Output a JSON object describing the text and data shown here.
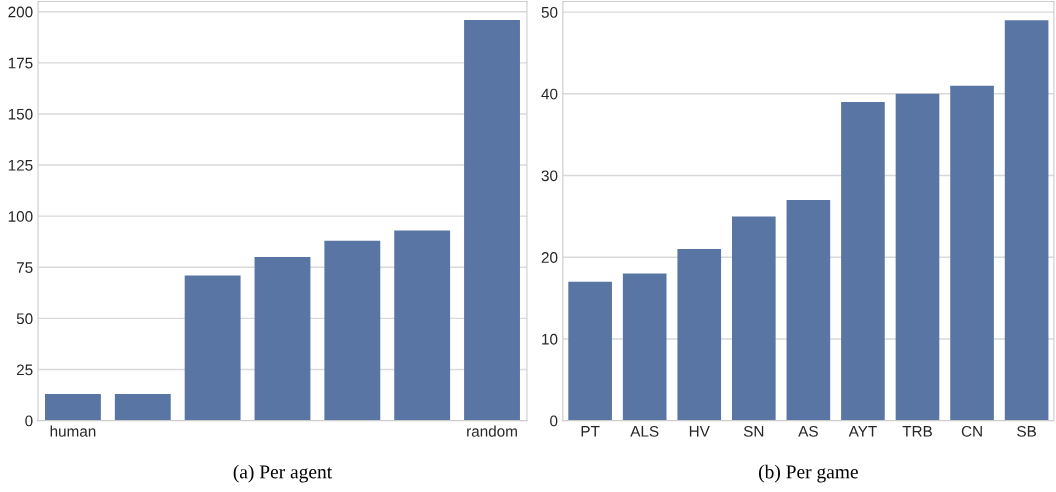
{
  "chart_data": [
    {
      "type": "bar",
      "xlabel": "(a) Per agent",
      "categories": [
        "human",
        null,
        null,
        null,
        null,
        null,
        "random"
      ],
      "values": [
        13,
        13,
        71,
        80,
        88,
        93,
        196
      ],
      "color": "#5975a4",
      "ylim": [
        0,
        205
      ],
      "yticks": [
        0,
        25,
        50,
        75,
        100,
        125,
        150,
        175,
        200
      ],
      "grid": "y"
    },
    {
      "type": "bar",
      "xlabel": "(b) Per game",
      "categories": [
        "PT",
        "ALS",
        "HV",
        "SN",
        "AS",
        "AYT",
        "TRB",
        "CN",
        "SB"
      ],
      "values": [
        17,
        18,
        21,
        25,
        27,
        39,
        40,
        41,
        49
      ],
      "color": "#5975a4",
      "ylim": [
        0,
        51.3
      ],
      "yticks": [
        0,
        10,
        20,
        30,
        40,
        50
      ],
      "grid": "y"
    }
  ]
}
